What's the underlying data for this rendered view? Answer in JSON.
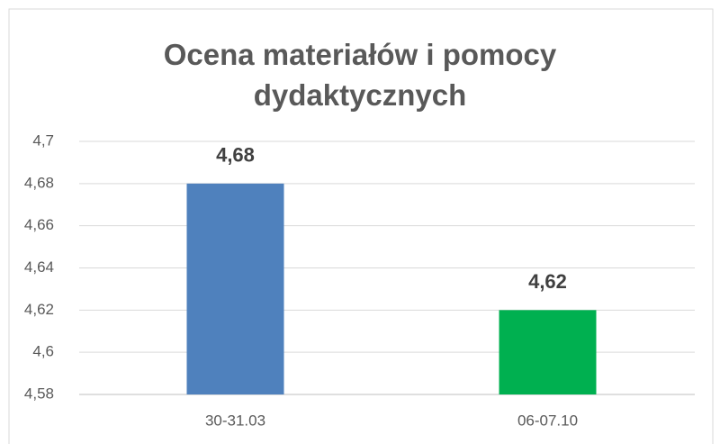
{
  "chart_data": {
    "type": "bar",
    "title": "Ocena materiałów i pomocy dydaktycznych",
    "categories": [
      "30-31.03",
      "06-07.10"
    ],
    "values": [
      4.68,
      4.62
    ],
    "value_labels": [
      "4,68",
      "4,62"
    ],
    "colors": [
      "#4f81bd",
      "#00b050"
    ],
    "ylim": [
      4.58,
      4.7
    ],
    "yticks": [
      {
        "value": 4.58,
        "label": "4,58"
      },
      {
        "value": 4.6,
        "label": "4,6"
      },
      {
        "value": 4.62,
        "label": "4,62"
      },
      {
        "value": 4.64,
        "label": "4,64"
      },
      {
        "value": 4.66,
        "label": "4,66"
      },
      {
        "value": 4.68,
        "label": "4,68"
      },
      {
        "value": 4.7,
        "label": "4,7"
      }
    ],
    "grid": true
  }
}
